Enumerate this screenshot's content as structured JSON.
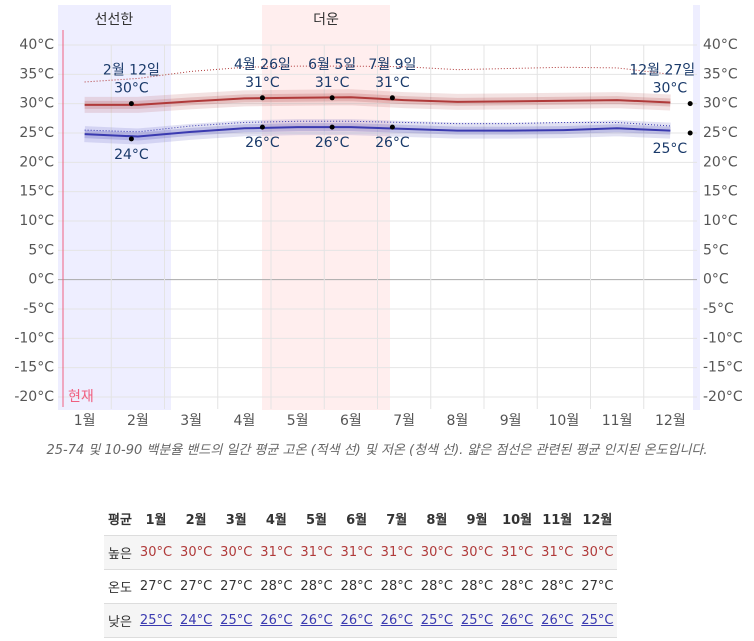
{
  "chart_data": {
    "type": "line",
    "seasons": [
      "선선한",
      "더운"
    ],
    "now_label": "현재",
    "categories": [
      "1월",
      "2월",
      "3월",
      "4월",
      "5월",
      "6월",
      "7월",
      "8월",
      "9월",
      "10월",
      "11월",
      "12월"
    ],
    "ylim": [
      -20,
      40
    ],
    "yticks": [
      {
        "value": 40,
        "label": "40°C"
      },
      {
        "value": 35,
        "label": "35°C"
      },
      {
        "value": 30,
        "label": "30°C"
      },
      {
        "value": 25,
        "label": "25°C"
      },
      {
        "value": 20,
        "label": "20°C"
      },
      {
        "value": 15,
        "label": "15°C"
      },
      {
        "value": 10,
        "label": "10°C"
      },
      {
        "value": 5,
        "label": "5°C"
      },
      {
        "value": 0,
        "label": "0°C"
      },
      {
        "value": -5,
        "label": "-5°C"
      },
      {
        "value": -10,
        "label": "-10°C"
      },
      {
        "value": -15,
        "label": "-15°C"
      },
      {
        "value": -20,
        "label": "-20°C"
      }
    ],
    "grid": true,
    "series": [
      {
        "color": "#b03a3a",
        "style": "solid",
        "values": [
          29.8,
          29.8,
          30.4,
          30.9,
          31.0,
          31.1,
          30.6,
          30.3,
          30.4,
          30.5,
          30.6,
          30.2
        ]
      },
      {
        "color": "#3a3ab0",
        "style": "solid",
        "values": [
          24.8,
          24.4,
          25.2,
          25.8,
          26.0,
          26.0,
          25.7,
          25.4,
          25.4,
          25.5,
          25.8,
          25.4
        ]
      },
      {
        "color": "#b03a3a",
        "style": "dotted",
        "values": [
          33.7,
          34.3,
          35.5,
          36.2,
          36.4,
          36.4,
          36.3,
          35.8,
          36.0,
          36.2,
          36.1,
          35.0
        ]
      },
      {
        "color": "#3a3ab0",
        "style": "dotted",
        "values": [
          25.5,
          25.2,
          26.2,
          26.8,
          27.0,
          27.0,
          26.8,
          26.6,
          26.6,
          26.8,
          26.8,
          26.2
        ]
      }
    ],
    "annotations": [
      {
        "date": "2월 12일",
        "high": 30,
        "high_label": "30°C",
        "low": 24,
        "low_label": "24°C"
      },
      {
        "date": "4월 26일",
        "high": 31,
        "high_label": "31°C",
        "low": 26,
        "low_label": "26°C"
      },
      {
        "date": "6월 5일",
        "high": 31,
        "high_label": "31°C",
        "low": 26,
        "low_label": "26°C"
      },
      {
        "date": "7월 9일",
        "high": 31,
        "high_label": "31°C",
        "low": 26,
        "low_label": "26°C"
      },
      {
        "date": "12월 27일",
        "high": 30,
        "high_label": "30°C",
        "low": 25,
        "low_label": "25°C"
      }
    ],
    "caption": "25-74 및 10-90 백분율 밴드의 일간 평균 고온 (적색 선) 및 저온 (청색 선). 얇은 점선은 관련된 평균 인지된 온도입니다."
  },
  "table": {
    "header": [
      "평균",
      "1월",
      "2월",
      "3월",
      "4월",
      "5월",
      "6월",
      "7월",
      "8월",
      "9월",
      "10월",
      "11월",
      "12월"
    ],
    "rows": [
      [
        "높은",
        "30°C",
        "30°C",
        "30°C",
        "31°C",
        "31°C",
        "31°C",
        "31°C",
        "30°C",
        "30°C",
        "31°C",
        "31°C",
        "30°C"
      ],
      [
        "온도",
        "27°C",
        "27°C",
        "27°C",
        "28°C",
        "28°C",
        "28°C",
        "28°C",
        "28°C",
        "28°C",
        "28°C",
        "28°C",
        "27°C"
      ],
      [
        "낮은",
        "25°C",
        "24°C",
        "25°C",
        "26°C",
        "26°C",
        "26°C",
        "26°C",
        "25°C",
        "25°C",
        "26°C",
        "26°C",
        "25°C"
      ]
    ]
  }
}
